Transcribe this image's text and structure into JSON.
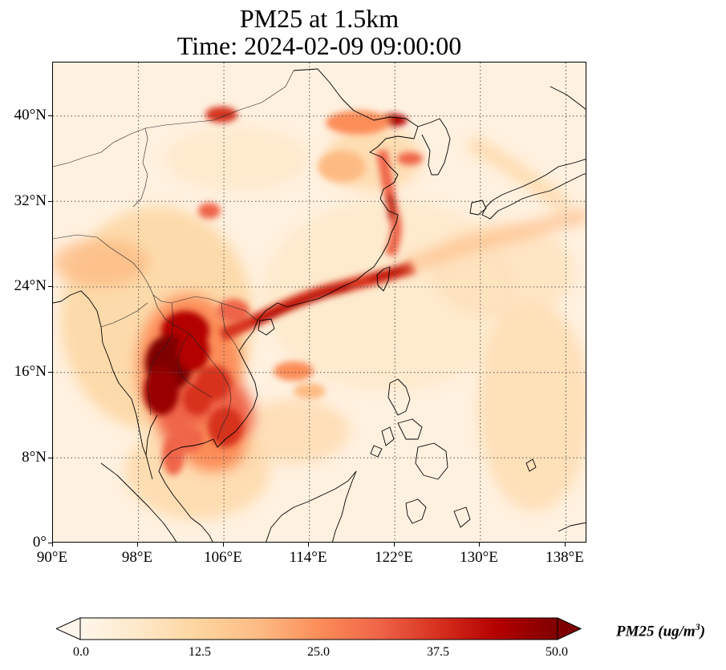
{
  "title_line1": "PM25 at 1.5km",
  "title_line2": "Time: 2024-02-09 09:00:00",
  "map": {
    "lon_range": [
      90,
      140
    ],
    "lat_range": [
      0,
      45
    ],
    "lon_ticks": [
      "90°E",
      "98°E",
      "106°E",
      "114°E",
      "122°E",
      "130°E",
      "138°E"
    ],
    "lat_ticks": [
      "0°",
      "8°N",
      "16°N",
      "24°N",
      "32°N",
      "40°N"
    ],
    "gridlines": "dotted",
    "colormap": "OrRd",
    "colormap_stops": [
      "#fff7ec",
      "#fee8c8",
      "#fdd49e",
      "#fdbb84",
      "#fc8d59",
      "#ef6548",
      "#d7301f",
      "#b30000",
      "#7f0000"
    ]
  },
  "colorbar": {
    "title": "PM25 (ug/m",
    "title_sup": "3",
    "title_tail": ")",
    "tick_labels": [
      "0.0",
      "12.5",
      "25.0",
      "37.5",
      "50.0"
    ],
    "extend": "both"
  }
}
